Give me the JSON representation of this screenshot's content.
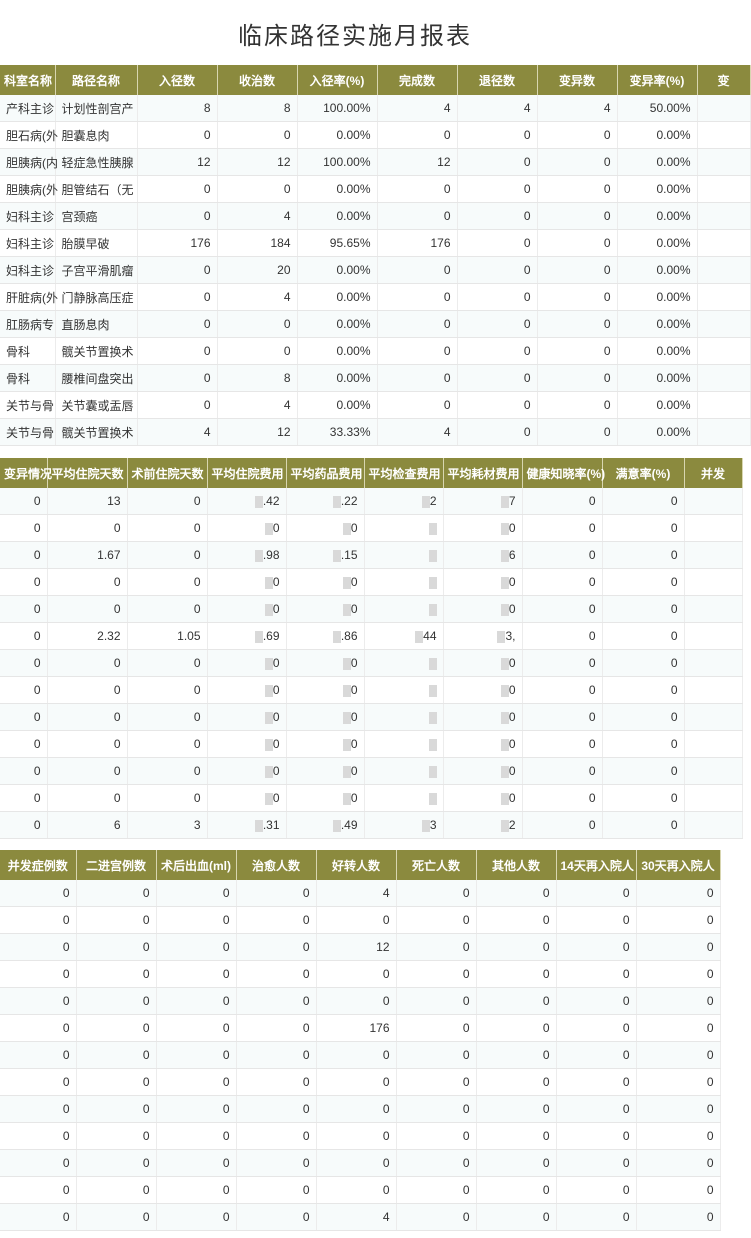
{
  "title": "临床路径实施月报表",
  "table1": {
    "headers": [
      "科室名称",
      "路径名称",
      "入径数",
      "收治数",
      "入径率(%)",
      "完成数",
      "退径数",
      "变异数",
      "变异率(%)",
      "变"
    ],
    "rows": [
      [
        "产科主诊",
        "计划性剖宫产",
        "8",
        "8",
        "100.00%",
        "4",
        "4",
        "4",
        "50.00%",
        ""
      ],
      [
        "胆石病(外",
        "胆囊息肉",
        "0",
        "0",
        "0.00%",
        "0",
        "0",
        "0",
        "0.00%",
        ""
      ],
      [
        "胆胰病(内",
        "轻症急性胰腺",
        "12",
        "12",
        "100.00%",
        "12",
        "0",
        "0",
        "0.00%",
        ""
      ],
      [
        "胆胰病(外",
        "胆管结石（无",
        "0",
        "0",
        "0.00%",
        "0",
        "0",
        "0",
        "0.00%",
        ""
      ],
      [
        "妇科主诊",
        "宫颈癌",
        "0",
        "4",
        "0.00%",
        "0",
        "0",
        "0",
        "0.00%",
        ""
      ],
      [
        "妇科主诊",
        "胎膜早破",
        "176",
        "184",
        "95.65%",
        "176",
        "0",
        "0",
        "0.00%",
        ""
      ],
      [
        "妇科主诊",
        "子宫平滑肌瘤",
        "0",
        "20",
        "0.00%",
        "0",
        "0",
        "0",
        "0.00%",
        ""
      ],
      [
        "肝脏病(外",
        "门静脉高压症",
        "0",
        "4",
        "0.00%",
        "0",
        "0",
        "0",
        "0.00%",
        ""
      ],
      [
        "肛肠病专",
        "直肠息肉",
        "0",
        "0",
        "0.00%",
        "0",
        "0",
        "0",
        "0.00%",
        ""
      ],
      [
        "骨科",
        "髋关节置换术",
        "0",
        "0",
        "0.00%",
        "0",
        "0",
        "0",
        "0.00%",
        ""
      ],
      [
        "骨科",
        "腰椎间盘突出",
        "0",
        "8",
        "0.00%",
        "0",
        "0",
        "0",
        "0.00%",
        ""
      ],
      [
        "关节与骨",
        "关节囊或盂唇",
        "0",
        "4",
        "0.00%",
        "0",
        "0",
        "0",
        "0.00%",
        ""
      ],
      [
        "关节与骨",
        "髋关节置换术",
        "4",
        "12",
        "33.33%",
        "4",
        "0",
        "0",
        "0.00%",
        ""
      ]
    ]
  },
  "table2": {
    "headers": [
      "变异情况",
      "平均住院天数",
      "术前住院天数",
      "平均住院费用",
      "平均药品费用",
      "平均检查费用",
      "平均耗材费用",
      "健康知晓率(%)",
      "满意率(%)",
      "并发"
    ],
    "rows": [
      [
        "0",
        "13",
        "0",
        ".42",
        ".22",
        "2",
        "7",
        "0",
        "0",
        ""
      ],
      [
        "0",
        "0",
        "0",
        "0",
        "0",
        "",
        "0",
        "0",
        "0",
        ""
      ],
      [
        "0",
        "1.67",
        "0",
        ".98",
        ".15",
        "",
        "6",
        "0",
        "0",
        ""
      ],
      [
        "0",
        "0",
        "0",
        "0",
        "0",
        "",
        "0",
        "0",
        "0",
        ""
      ],
      [
        "0",
        "0",
        "0",
        "0",
        "0",
        "",
        "0",
        "0",
        "0",
        ""
      ],
      [
        "0",
        "2.32",
        "1.05",
        ".69",
        ".86",
        "44",
        "3,",
        "0",
        "0",
        ""
      ],
      [
        "0",
        "0",
        "0",
        "0",
        "0",
        "",
        "0",
        "0",
        "0",
        ""
      ],
      [
        "0",
        "0",
        "0",
        "0",
        "0",
        "",
        "0",
        "0",
        "0",
        ""
      ],
      [
        "0",
        "0",
        "0",
        "0",
        "0",
        "",
        "0",
        "0",
        "0",
        ""
      ],
      [
        "0",
        "0",
        "0",
        "0",
        "0",
        "",
        "0",
        "0",
        "0",
        ""
      ],
      [
        "0",
        "0",
        "0",
        "0",
        "0",
        "",
        "0",
        "0",
        "0",
        ""
      ],
      [
        "0",
        "0",
        "0",
        "0",
        "0",
        "",
        "0",
        "0",
        "0",
        ""
      ],
      [
        "0",
        "6",
        "3",
        ".31",
        ".49",
        "3",
        "2",
        "0",
        "0",
        ""
      ]
    ]
  },
  "table3": {
    "headers": [
      "并发症例数",
      "二进宫例数",
      "术后出血(ml)",
      "治愈人数",
      "好转人数",
      "死亡人数",
      "其他人数",
      "14天再入院人",
      "30天再入院人"
    ],
    "rows": [
      [
        "0",
        "0",
        "0",
        "0",
        "4",
        "0",
        "0",
        "0",
        "0"
      ],
      [
        "0",
        "0",
        "0",
        "0",
        "0",
        "0",
        "0",
        "0",
        "0"
      ],
      [
        "0",
        "0",
        "0",
        "0",
        "12",
        "0",
        "0",
        "0",
        "0"
      ],
      [
        "0",
        "0",
        "0",
        "0",
        "0",
        "0",
        "0",
        "0",
        "0"
      ],
      [
        "0",
        "0",
        "0",
        "0",
        "0",
        "0",
        "0",
        "0",
        "0"
      ],
      [
        "0",
        "0",
        "0",
        "0",
        "176",
        "0",
        "0",
        "0",
        "0"
      ],
      [
        "0",
        "0",
        "0",
        "0",
        "0",
        "0",
        "0",
        "0",
        "0"
      ],
      [
        "0",
        "0",
        "0",
        "0",
        "0",
        "0",
        "0",
        "0",
        "0"
      ],
      [
        "0",
        "0",
        "0",
        "0",
        "0",
        "0",
        "0",
        "0",
        "0"
      ],
      [
        "0",
        "0",
        "0",
        "0",
        "0",
        "0",
        "0",
        "0",
        "0"
      ],
      [
        "0",
        "0",
        "0",
        "0",
        "0",
        "0",
        "0",
        "0",
        "0"
      ],
      [
        "0",
        "0",
        "0",
        "0",
        "0",
        "0",
        "0",
        "0",
        "0"
      ],
      [
        "0",
        "0",
        "0",
        "0",
        "4",
        "0",
        "0",
        "0",
        "0"
      ]
    ]
  }
}
